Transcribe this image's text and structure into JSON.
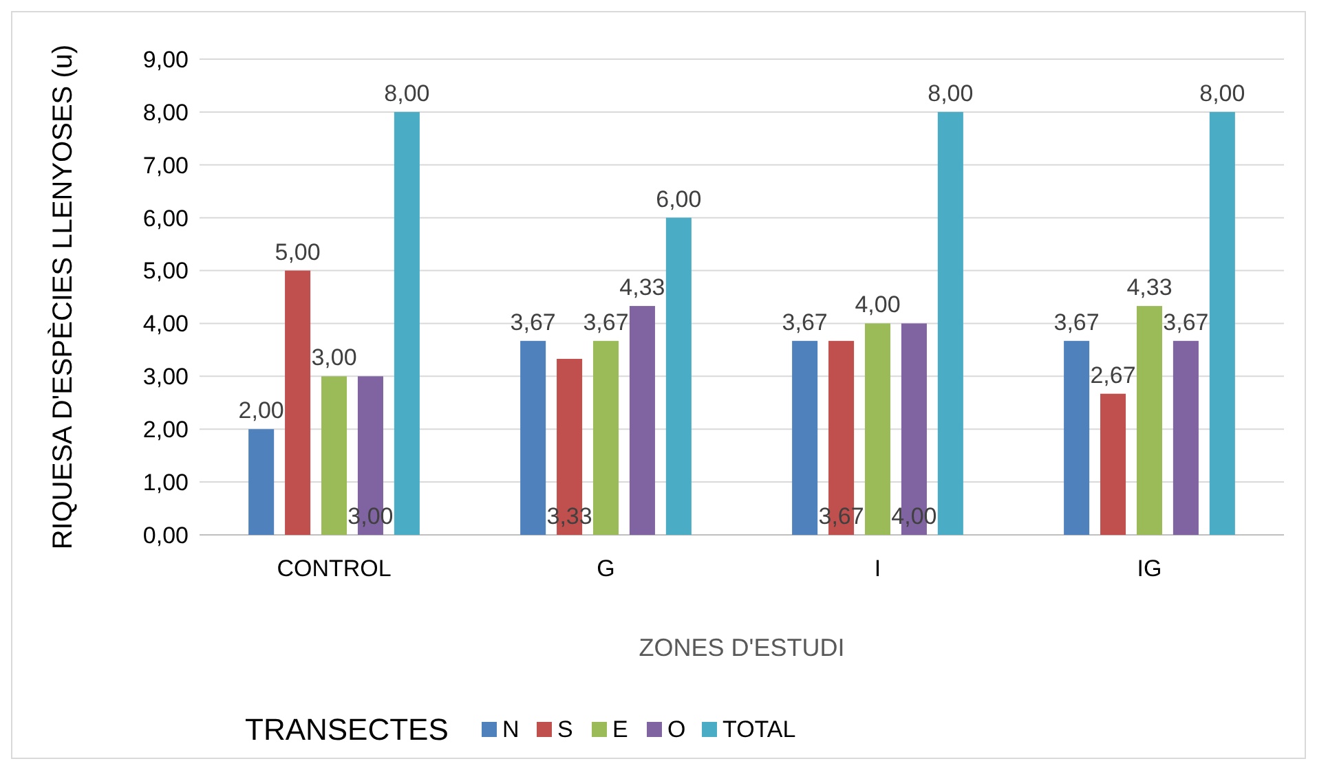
{
  "chart_data": {
    "type": "bar",
    "xlabel": "ZONES D'ESTUDI",
    "ylabel": "RIQUESA D'ESPÈCIES LLENYOSES (u)",
    "legend_title": "TRANSECTES",
    "categories": [
      "CONTROL",
      "G",
      "I",
      "IG"
    ],
    "series": [
      {
        "name": "N",
        "color": "#4f81bd",
        "values": [
          2,
          3.67,
          3.67,
          3.67
        ],
        "value_labels": [
          "2,00",
          "3,67",
          "3,67",
          "3,67"
        ]
      },
      {
        "name": "S",
        "color": "#c0504d",
        "values": [
          5,
          3.33,
          3.67,
          2.67
        ],
        "value_labels": [
          "5,00",
          "3,33",
          "3,67",
          "2,67"
        ]
      },
      {
        "name": "E",
        "color": "#9bbb59",
        "values": [
          3,
          3.67,
          4,
          4.33
        ],
        "value_labels": [
          "3,00",
          "3,67",
          "4,00",
          "4,33"
        ]
      },
      {
        "name": "O",
        "color": "#8064a2",
        "values": [
          3,
          4.33,
          4,
          3.67
        ],
        "value_labels": [
          "3,00",
          "4,33",
          "4,00",
          "3,67"
        ]
      },
      {
        "name": "TOTAL",
        "color": "#4bacc6",
        "values": [
          8,
          6,
          8,
          8
        ],
        "value_labels": [
          "8,00",
          "6,00",
          "8,00",
          "8,00"
        ]
      }
    ],
    "ylim": [
      0,
      9
    ],
    "yticks": [
      {
        "value": 0,
        "label": "0,00"
      },
      {
        "value": 1,
        "label": "1,00"
      },
      {
        "value": 2,
        "label": "2,00"
      },
      {
        "value": 3,
        "label": "3,00"
      },
      {
        "value": 4,
        "label": "4,00"
      },
      {
        "value": 5,
        "label": "5,00"
      },
      {
        "value": 6,
        "label": "6,00"
      },
      {
        "value": 7,
        "label": "7,00"
      },
      {
        "value": 8,
        "label": "8,00"
      },
      {
        "value": 9,
        "label": "9,00"
      }
    ],
    "grid": "y",
    "legend": "bottom"
  }
}
